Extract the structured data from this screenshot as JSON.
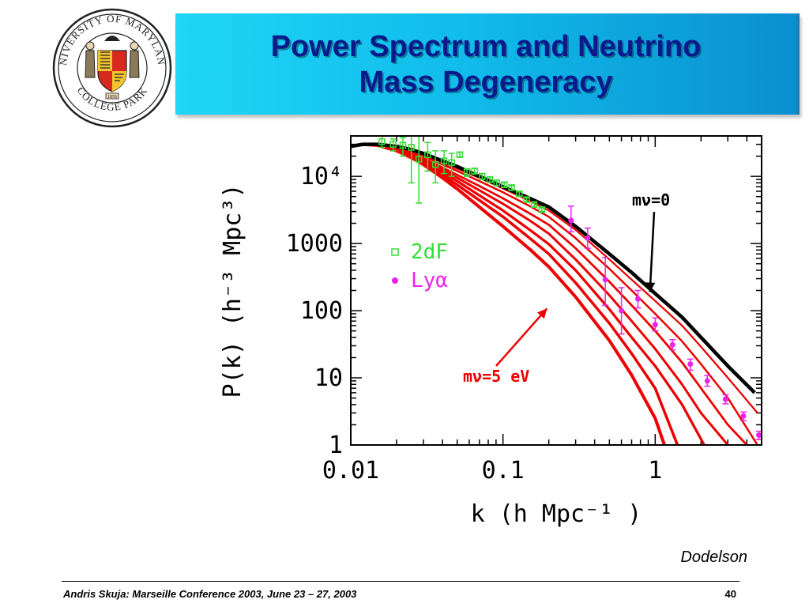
{
  "slide": {
    "title_line1": "Power Spectrum and Neutrino",
    "title_line2": "Mass Degeneracy",
    "logo": {
      "name": "university-seal-icon",
      "text_top": "UNIVERSITY OF MARYLAND",
      "text_bottom": "COLLEGE PARK",
      "year": "1856"
    },
    "credit": "Dodelson",
    "footer": "Andris Skuja: Marseille Conference 2003, June 23 – 27, 2003",
    "page_number": "40",
    "colors": {
      "title_text": "#0a1a8c",
      "title_bg_start": "#1fd6f6",
      "title_bg_end": "#0a8fcf"
    }
  },
  "chart_data": {
    "type": "line",
    "xlabel": "k (h Mpc⁻¹ )",
    "ylabel": "P(k) (h⁻³ Mpc³)",
    "x_scale": "log",
    "y_scale": "log",
    "xlim": [
      0.01,
      5
    ],
    "ylim": [
      1,
      40000
    ],
    "x_ticks": [
      {
        "value": 0.01,
        "label": "0.01"
      },
      {
        "value": 0.1,
        "label": "0.1"
      },
      {
        "value": 1,
        "label": "1"
      }
    ],
    "y_ticks": [
      {
        "value": 1,
        "label": "1"
      },
      {
        "value": 10,
        "label": "10"
      },
      {
        "value": 100,
        "label": "100"
      },
      {
        "value": 1000,
        "label": "1000"
      },
      {
        "value": 10000,
        "label": "10⁴"
      }
    ],
    "legend": {
      "placement": "middle-left",
      "entries": [
        {
          "label": "2dF",
          "marker": "open-square",
          "color": "#33dd33"
        },
        {
          "label": "Lyα",
          "marker": "filled-circle",
          "color": "#ee22ee"
        }
      ]
    },
    "annotations": [
      {
        "text": "mν=0",
        "color": "#000000",
        "arrow_to": [
          0.88,
          170
        ]
      },
      {
        "text": "mν=5 eV",
        "color": "#ee0000",
        "arrow_to": [
          0.19,
          120
        ]
      }
    ],
    "series": [
      {
        "name": "mν=0",
        "color": "#000000",
        "x": [
          0.01,
          0.012,
          0.015,
          0.02,
          0.025,
          0.03,
          0.04,
          0.05,
          0.07,
          0.1,
          0.15,
          0.2,
          0.3,
          0.5,
          0.7,
          1,
          1.5,
          2,
          3,
          4.5
        ],
        "y": [
          28000,
          30000,
          30000,
          28000,
          25000,
          22000,
          17000,
          14000,
          10000,
          7000,
          4700,
          3500,
          1800,
          700,
          370,
          180,
          80,
          40,
          15,
          6
        ]
      },
      {
        "name": "",
        "color": "#ee0000",
        "x": [
          0.01,
          0.012,
          0.015,
          0.02,
          0.025,
          0.03,
          0.04,
          0.05,
          0.07,
          0.1,
          0.15,
          0.2,
          0.3,
          0.5,
          0.7,
          1,
          1.5,
          2,
          3,
          4.7
        ],
        "y": [
          28000,
          30000,
          30000,
          28000,
          24000,
          21000,
          16000,
          13000,
          9500,
          6600,
          4300,
          3100,
          1600,
          580,
          290,
          140,
          60,
          29,
          10,
          3
        ]
      },
      {
        "name": "",
        "color": "#ee0000",
        "x": [
          0.01,
          0.012,
          0.015,
          0.02,
          0.025,
          0.03,
          0.04,
          0.05,
          0.07,
          0.1,
          0.15,
          0.2,
          0.3,
          0.5,
          0.7,
          1,
          1.5,
          2,
          3,
          4.7
        ],
        "y": [
          28000,
          30000,
          30000,
          27000,
          23000,
          20000,
          15000,
          12000,
          8500,
          5800,
          3600,
          2500,
          1200,
          420,
          200,
          90,
          35,
          16,
          5,
          1
        ]
      },
      {
        "name": "",
        "color": "#ee0000",
        "x": [
          0.01,
          0.012,
          0.015,
          0.02,
          0.025,
          0.03,
          0.04,
          0.05,
          0.07,
          0.1,
          0.15,
          0.2,
          0.3,
          0.5,
          0.7,
          1,
          1.5,
          2,
          3,
          4
        ],
        "y": [
          28000,
          30000,
          30000,
          27000,
          22000,
          18500,
          13500,
          10500,
          7200,
          4700,
          2800,
          1900,
          850,
          270,
          120,
          50,
          17,
          7,
          2,
          1
        ]
      },
      {
        "name": "",
        "color": "#ee0000",
        "x": [
          0.01,
          0.012,
          0.015,
          0.02,
          0.025,
          0.03,
          0.04,
          0.05,
          0.07,
          0.1,
          0.15,
          0.2,
          0.3,
          0.5,
          0.7,
          1,
          1.5,
          2,
          3
        ],
        "y": [
          28000,
          30000,
          30000,
          26000,
          21000,
          17500,
          12500,
          9500,
          6200,
          3900,
          2200,
          1400,
          580,
          170,
          70,
          27,
          8,
          3,
          1
        ]
      },
      {
        "name": "",
        "color": "#ee0000",
        "x": [
          0.01,
          0.012,
          0.015,
          0.02,
          0.025,
          0.03,
          0.04,
          0.05,
          0.07,
          0.1,
          0.15,
          0.2,
          0.3,
          0.5,
          0.7,
          1,
          1.5,
          2.1
        ],
        "y": [
          28000,
          30000,
          29000,
          25000,
          20000,
          16500,
          11500,
          8500,
          5200,
          3100,
          1600,
          980,
          400,
          105,
          40,
          15,
          4,
          1
        ]
      },
      {
        "name": "",
        "color": "#ee0000",
        "x": [
          0.01,
          0.012,
          0.015,
          0.02,
          0.025,
          0.03,
          0.04,
          0.05,
          0.07,
          0.1,
          0.15,
          0.2,
          0.3,
          0.5,
          0.7,
          1,
          1.4
        ],
        "y": [
          28000,
          30000,
          29000,
          24500,
          19500,
          15500,
          10500,
          7500,
          4400,
          2500,
          1200,
          700,
          260,
          65,
          23,
          7,
          1
        ]
      },
      {
        "name": "mν=5 eV",
        "color": "#ee0000",
        "x": [
          0.01,
          0.012,
          0.015,
          0.02,
          0.025,
          0.03,
          0.04,
          0.05,
          0.07,
          0.1,
          0.15,
          0.2,
          0.3,
          0.5,
          0.7,
          1,
          1.15
        ],
        "y": [
          28000,
          30000,
          29000,
          24000,
          19000,
          15000,
          9500,
          6500,
          3500,
          1800,
          820,
          450,
          160,
          36,
          11,
          2.5,
          1
        ]
      }
    ],
    "points": [
      {
        "name": "2dF",
        "color": "#33dd33",
        "marker": "open-square",
        "x": [
          0.016,
          0.019,
          0.022,
          0.025,
          0.028,
          0.032,
          0.036,
          0.041,
          0.046,
          0.052,
          0.058,
          0.065,
          0.073,
          0.082,
          0.091,
          0.102,
          0.114,
          0.128,
          0.143,
          0.16,
          0.18
        ],
        "y": [
          33000,
          30000,
          29000,
          27000,
          18000,
          21000,
          15000,
          17000,
          16000,
          21000,
          11500,
          12000,
          10000,
          9000,
          8000,
          7500,
          6800,
          5500,
          4500,
          3800,
          3200
        ],
        "err_low": [
          27000,
          24000,
          20000,
          8000,
          4000,
          12000,
          8000,
          11000,
          10000,
          19500,
          10000,
          10800,
          9000,
          8200,
          7300,
          6900,
          6300,
          5100,
          4200,
          3550,
          3000
        ],
        "err_high": [
          40000,
          36000,
          38000,
          42000,
          40000,
          32000,
          24000,
          24000,
          22000,
          23000,
          13000,
          13200,
          11000,
          9800,
          8700,
          8100,
          7300,
          5900,
          4800,
          4050,
          3400
        ]
      },
      {
        "name": "Lyα",
        "color": "#ee22ee",
        "marker": "filled-circle",
        "x": [
          0.28,
          0.36,
          0.47,
          0.6,
          0.77,
          1.0,
          1.3,
          1.7,
          2.2,
          2.9,
          3.8,
          4.8
        ],
        "y": [
          2200,
          1200,
          290,
          100,
          150,
          62,
          31,
          16,
          9,
          4.8,
          2.7,
          1.4
        ],
        "err_low": [
          1500,
          850,
          120,
          45,
          110,
          50,
          26,
          13,
          7.5,
          4.1,
          2.3,
          1.2
        ],
        "err_high": [
          3600,
          1700,
          620,
          220,
          200,
          78,
          37,
          19,
          10.8,
          5.6,
          3.1,
          1.6
        ]
      }
    ]
  }
}
